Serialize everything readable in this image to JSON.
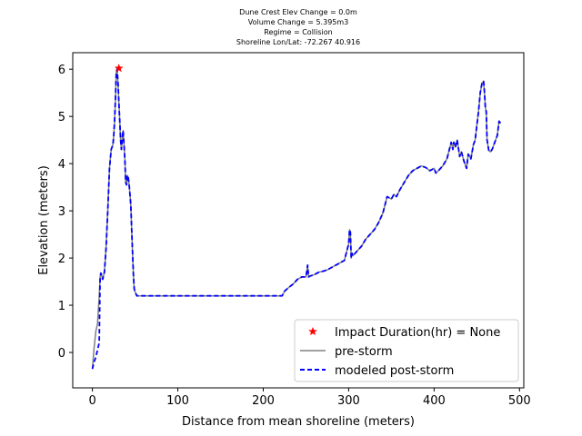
{
  "chart_data": {
    "type": "line",
    "title_lines": [
      "Dune Crest Elev Change = 0.0m",
      "Volume Change = 5.395m3",
      "Regime = Collision",
      "Shoreline Lon/Lat: -72.267 40.916"
    ],
    "xlabel": "Distance from mean shoreline (meters)",
    "ylabel": "Elevation (meters)",
    "xlim": [
      -23,
      505
    ],
    "ylim": [
      -0.75,
      6.35
    ],
    "xticks": [
      0,
      100,
      200,
      300,
      400,
      500
    ],
    "yticks": [
      0,
      1,
      2,
      3,
      4,
      5,
      6
    ],
    "grid": false,
    "legend_position": "lower right",
    "colors": {
      "pre_storm": "#808080",
      "post_storm": "#0000ff",
      "marker": "#ff0000"
    },
    "marker": {
      "label": "Impact Duration(hr) = None",
      "x": 31,
      "y": 6.02
    },
    "series": [
      {
        "name": "pre-storm",
        "style": "solid",
        "x": [
          0,
          2,
          4,
          6,
          8,
          9,
          10,
          12,
          14,
          16,
          18,
          20,
          22,
          24,
          25,
          26,
          27,
          28,
          29,
          30,
          31,
          32,
          33,
          34,
          35,
          36,
          37,
          38,
          39,
          40,
          41,
          42,
          43,
          44,
          45,
          46,
          47,
          48,
          49,
          50,
          52,
          54,
          56,
          58,
          60,
          62,
          64,
          66,
          80,
          100,
          150,
          200,
          222,
          225,
          230,
          235,
          240,
          245,
          250,
          252,
          253,
          255,
          260,
          265,
          270,
          275,
          280,
          285,
          290,
          295,
          300,
          301,
          302,
          303,
          304,
          305,
          310,
          315,
          320,
          325,
          330,
          335,
          340,
          345,
          350,
          353,
          356,
          360,
          365,
          370,
          375,
          380,
          385,
          390,
          395,
          400,
          402,
          405,
          410,
          415,
          420,
          422,
          423,
          425,
          427,
          430,
          432,
          435,
          438,
          440,
          443,
          446,
          448,
          450,
          452,
          454,
          456,
          458,
          459,
          460,
          461,
          462,
          464,
          466,
          468,
          470,
          472,
          474,
          476,
          478
        ],
        "y": [
          -0.35,
          0.1,
          0.45,
          0.6,
          1.2,
          1.6,
          1.68,
          1.55,
          1.7,
          2.2,
          3.0,
          3.9,
          4.3,
          4.4,
          4.6,
          4.9,
          5.4,
          5.95,
          6.0,
          5.7,
          5.3,
          4.9,
          4.5,
          4.3,
          4.55,
          4.7,
          4.4,
          4.1,
          3.6,
          3.55,
          3.75,
          3.7,
          3.55,
          3.35,
          3.1,
          2.6,
          2.1,
          1.65,
          1.35,
          1.28,
          1.2,
          1.2,
          1.2,
          1.2,
          1.2,
          1.2,
          1.2,
          1.2,
          1.2,
          1.2,
          1.2,
          1.2,
          1.2,
          1.3,
          1.38,
          1.45,
          1.55,
          1.6,
          1.6,
          1.85,
          1.6,
          1.62,
          1.65,
          1.7,
          1.72,
          1.75,
          1.8,
          1.85,
          1.9,
          1.95,
          2.3,
          2.6,
          2.55,
          2.0,
          2.1,
          2.05,
          2.15,
          2.25,
          2.4,
          2.5,
          2.6,
          2.75,
          2.95,
          3.3,
          3.25,
          3.35,
          3.3,
          3.45,
          3.6,
          3.75,
          3.85,
          3.9,
          3.95,
          3.92,
          3.85,
          3.9,
          3.8,
          3.85,
          3.95,
          4.1,
          4.45,
          4.3,
          4.45,
          4.35,
          4.5,
          4.15,
          4.25,
          4.05,
          3.9,
          4.2,
          4.1,
          4.4,
          4.5,
          4.8,
          5.1,
          5.5,
          5.7,
          5.75,
          5.5,
          5.2,
          5.1,
          4.5,
          4.28,
          4.25,
          4.3,
          4.4,
          4.5,
          4.6,
          4.9,
          4.85
        ]
      },
      {
        "name": "modeled post-storm",
        "style": "dashed",
        "x": [
          0,
          2,
          4,
          6,
          8,
          9,
          10,
          12,
          14,
          16,
          18,
          20,
          22,
          24,
          25,
          26,
          27,
          28,
          29,
          30,
          31,
          32,
          33,
          34,
          35,
          36,
          37,
          38,
          39,
          40,
          41,
          42,
          43,
          44,
          45,
          46,
          47,
          48,
          49,
          50,
          52,
          54,
          56,
          58,
          60,
          62,
          64,
          66,
          80,
          100,
          150,
          200,
          222,
          225,
          230,
          235,
          240,
          245,
          250,
          252,
          253,
          255,
          260,
          265,
          270,
          275,
          280,
          285,
          290,
          295,
          300,
          301,
          302,
          303,
          304,
          305,
          310,
          315,
          320,
          325,
          330,
          335,
          340,
          345,
          350,
          353,
          356,
          360,
          365,
          370,
          375,
          380,
          385,
          390,
          395,
          400,
          402,
          405,
          410,
          415,
          420,
          422,
          423,
          425,
          427,
          430,
          432,
          435,
          438,
          440,
          443,
          446,
          448,
          450,
          452,
          454,
          456,
          458,
          459,
          460,
          461,
          462,
          464,
          466,
          468,
          470,
          472,
          474,
          476,
          478
        ],
        "y": [
          -0.35,
          -0.2,
          -0.1,
          0.05,
          0.2,
          1.6,
          1.68,
          1.55,
          1.7,
          2.2,
          3.0,
          3.9,
          4.3,
          4.4,
          4.6,
          4.9,
          5.4,
          5.95,
          6.0,
          5.7,
          5.3,
          4.9,
          4.5,
          4.3,
          4.55,
          4.7,
          4.4,
          4.1,
          3.6,
          3.55,
          3.75,
          3.7,
          3.55,
          3.35,
          3.1,
          2.6,
          2.1,
          1.65,
          1.35,
          1.28,
          1.2,
          1.2,
          1.2,
          1.2,
          1.2,
          1.2,
          1.2,
          1.2,
          1.2,
          1.2,
          1.2,
          1.2,
          1.2,
          1.3,
          1.38,
          1.45,
          1.55,
          1.6,
          1.6,
          1.85,
          1.6,
          1.62,
          1.65,
          1.7,
          1.72,
          1.75,
          1.8,
          1.85,
          1.9,
          1.95,
          2.3,
          2.6,
          2.55,
          2.0,
          2.1,
          2.05,
          2.15,
          2.25,
          2.4,
          2.5,
          2.6,
          2.75,
          2.95,
          3.3,
          3.25,
          3.35,
          3.3,
          3.45,
          3.6,
          3.75,
          3.85,
          3.9,
          3.95,
          3.92,
          3.85,
          3.9,
          3.8,
          3.85,
          3.95,
          4.1,
          4.45,
          4.3,
          4.45,
          4.35,
          4.5,
          4.15,
          4.25,
          4.05,
          3.9,
          4.2,
          4.1,
          4.4,
          4.5,
          4.8,
          5.1,
          5.5,
          5.7,
          5.75,
          5.5,
          5.2,
          5.1,
          4.5,
          4.28,
          4.25,
          4.3,
          4.4,
          4.5,
          4.6,
          4.9,
          4.85
        ]
      }
    ]
  }
}
